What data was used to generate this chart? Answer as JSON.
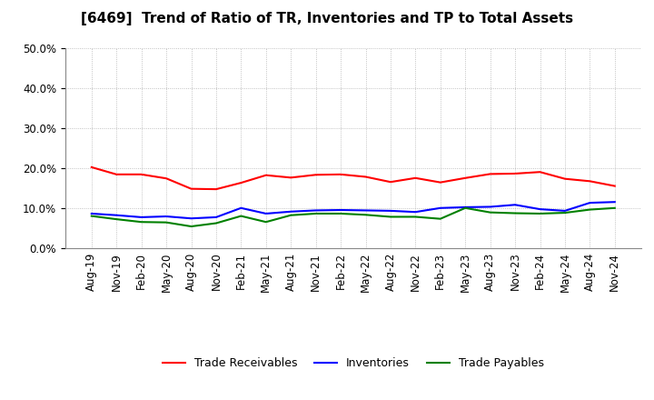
{
  "title": "[6469]  Trend of Ratio of TR, Inventories and TP to Total Assets",
  "x_labels": [
    "Aug-19",
    "Nov-19",
    "Feb-20",
    "May-20",
    "Aug-20",
    "Nov-20",
    "Feb-21",
    "May-21",
    "Aug-21",
    "Nov-21",
    "Feb-22",
    "May-22",
    "Aug-22",
    "Nov-22",
    "Feb-23",
    "May-23",
    "Aug-23",
    "Nov-23",
    "Feb-24",
    "May-24",
    "Aug-24",
    "Nov-24"
  ],
  "trade_receivables": [
    0.202,
    0.184,
    0.184,
    0.174,
    0.148,
    0.147,
    0.163,
    0.182,
    0.176,
    0.183,
    0.184,
    0.178,
    0.165,
    0.175,
    0.164,
    0.175,
    0.185,
    0.186,
    0.19,
    0.173,
    0.167,
    0.155
  ],
  "inventories": [
    0.086,
    0.082,
    0.077,
    0.079,
    0.074,
    0.077,
    0.1,
    0.086,
    0.091,
    0.094,
    0.095,
    0.094,
    0.093,
    0.09,
    0.1,
    0.102,
    0.103,
    0.108,
    0.097,
    0.093,
    0.113,
    0.115
  ],
  "trade_payables": [
    0.08,
    0.072,
    0.065,
    0.064,
    0.054,
    0.062,
    0.08,
    0.065,
    0.082,
    0.086,
    0.086,
    0.083,
    0.078,
    0.078,
    0.073,
    0.1,
    0.089,
    0.087,
    0.086,
    0.088,
    0.096,
    0.1
  ],
  "tr_color": "#ff0000",
  "inv_color": "#0000ff",
  "tp_color": "#008000",
  "ylim": [
    0.0,
    0.5
  ],
  "yticks": [
    0.0,
    0.1,
    0.2,
    0.3,
    0.4,
    0.5
  ],
  "legend_labels": [
    "Trade Receivables",
    "Inventories",
    "Trade Payables"
  ],
  "background_color": "#ffffff",
  "grid_color": "#b0b0b0",
  "title_fontsize": 11,
  "tick_fontsize": 8.5,
  "legend_fontsize": 9
}
